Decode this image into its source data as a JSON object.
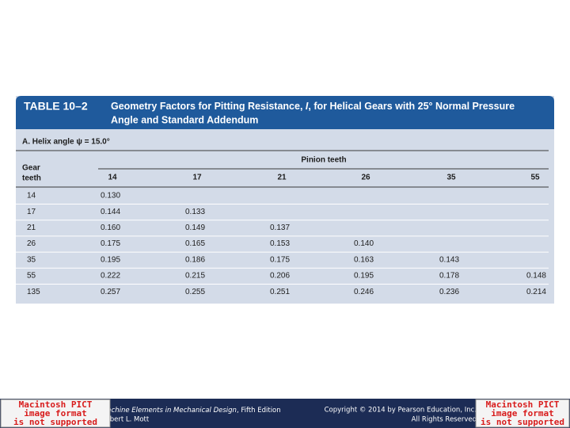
{
  "table": {
    "label": "TABLE 10–2",
    "title_before": "Geometry Factors for Pitting Resistance, ",
    "title_symbol": "I",
    "title_after_line1": ", for Helical Gears with 25° Normal Pressure",
    "title_line2": "Angle and Standard Addendum",
    "section": "A. Helix angle ψ = 15.0°",
    "column_group": "Pinion teeth",
    "row_header": [
      "Gear",
      "teeth"
    ],
    "columns": [
      "14",
      "17",
      "21",
      "26",
      "35",
      "55"
    ],
    "rows": [
      [
        "14",
        "0.130"
      ],
      [
        "17",
        "0.144",
        "0.133"
      ],
      [
        "21",
        "0.160",
        "0.149",
        "0.137"
      ],
      [
        "26",
        "0.175",
        "0.165",
        "0.153",
        "0.140"
      ],
      [
        "35",
        "0.195",
        "0.186",
        "0.175",
        "0.163",
        "0.143"
      ],
      [
        "55",
        "0.222",
        "0.215",
        "0.206",
        "0.195",
        "0.178",
        "0.148"
      ],
      [
        "135",
        "0.257",
        "0.255",
        "0.251",
        "0.246",
        "0.236",
        "0.214"
      ]
    ]
  },
  "footer": {
    "book_title": "Machine Elements in Mechanical Design",
    "edition": ", Fifth Edition",
    "author": "Robert L. Mott",
    "copyright": "Copyright © 2014 by Pearson Education, Inc.",
    "rights": "All Rights Reserved",
    "placeholders": [
      {
        "lines": [
          "Macintosh PICT",
          "image format",
          "is not supported"
        ]
      },
      {
        "lines": [
          "Macintosh PICT",
          "image format",
          "is not supported"
        ]
      }
    ]
  }
}
